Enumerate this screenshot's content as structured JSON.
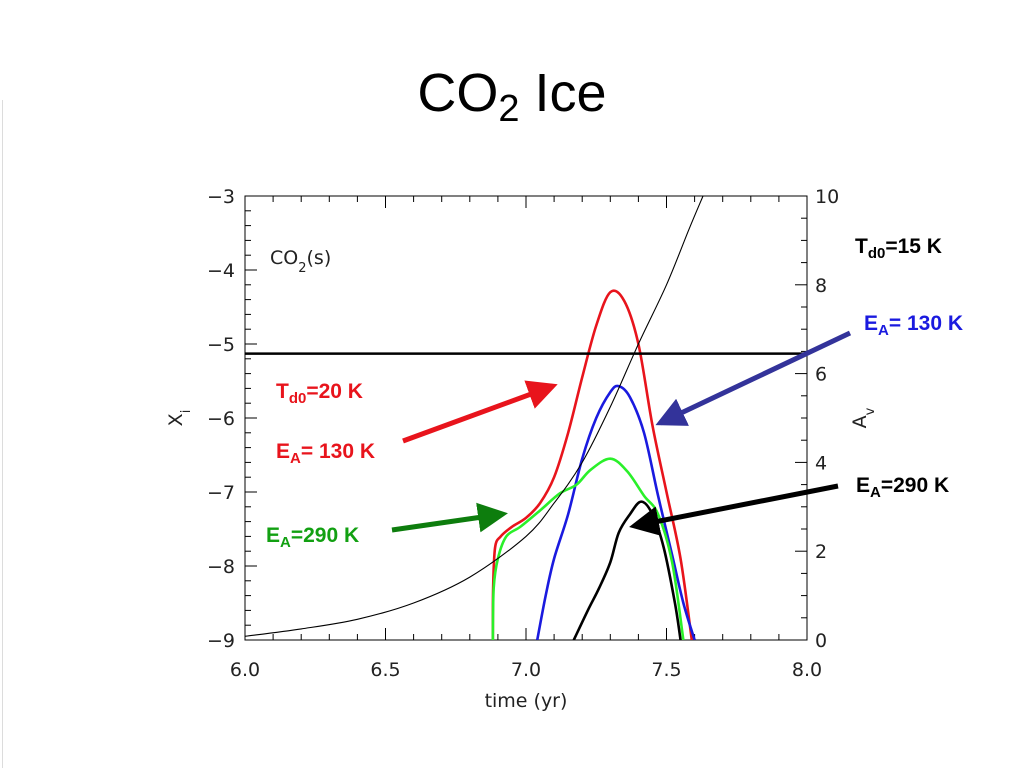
{
  "slide": {
    "title_main": "CO",
    "title_sub": "2",
    "title_rest": " Ice"
  },
  "annotations": {
    "td0_15": {
      "main": "T",
      "sub": "d0",
      "rest": "=15 K"
    },
    "ea_130_blue": {
      "main": "E",
      "sub": "A",
      "rest": "= 130 K"
    },
    "ea_290_black": {
      "main": "E",
      "sub": "A",
      "rest": "=290 K"
    },
    "td0_20": {
      "main": "T",
      "sub": "d0",
      "rest": "=20 K"
    },
    "ea_130_red": {
      "main": "E",
      "sub": "A",
      "rest": "= 130 K"
    },
    "ea_290_green": {
      "main": "E",
      "sub": "A",
      "rest": "=290 K"
    }
  },
  "colors": {
    "red": "#e8141c",
    "blue": "#1a1adf",
    "green": "#2af02a",
    "black": "#000000",
    "arrow_blue": "#33339a",
    "arrow_green": "#0d7d0d"
  },
  "chart_data": {
    "type": "line",
    "panel_label": {
      "main": "CO",
      "sub": "2",
      "rest": "(s)"
    },
    "xlabel": "time (yr)",
    "ylabel_left": {
      "main": "X",
      "sub": "i"
    },
    "ylabel_right": {
      "main": "A",
      "sub": "v"
    },
    "xlim": [
      6.0,
      8.0
    ],
    "ylim_left": [
      -9,
      -3
    ],
    "ylim_right": [
      0,
      10
    ],
    "x_ticks": [
      "6.0",
      "6.5",
      "7.0",
      "7.5",
      "8.0"
    ],
    "y_ticks_left": [
      "−3",
      "−4",
      "−5",
      "−6",
      "−7",
      "−8",
      "−9"
    ],
    "y_ticks_right": [
      "10",
      "8",
      "6",
      "4",
      "2",
      "0"
    ],
    "grid": false,
    "series": [
      {
        "color": "red",
        "axis": "left",
        "points": [
          [
            6.882,
            -9.0
          ],
          [
            6.883,
            -8.3
          ],
          [
            6.89,
            -7.75
          ],
          [
            6.91,
            -7.6
          ],
          [
            6.95,
            -7.47
          ],
          [
            7.0,
            -7.35
          ],
          [
            7.05,
            -7.15
          ],
          [
            7.1,
            -6.8
          ],
          [
            7.15,
            -6.2
          ],
          [
            7.2,
            -5.45
          ],
          [
            7.25,
            -4.75
          ],
          [
            7.3,
            -4.3
          ],
          [
            7.35,
            -4.42
          ],
          [
            7.4,
            -5.0
          ],
          [
            7.45,
            -6.1
          ],
          [
            7.5,
            -7.0
          ],
          [
            7.55,
            -7.9
          ],
          [
            7.59,
            -9.0
          ]
        ]
      },
      {
        "color": "blue",
        "axis": "left",
        "points": [
          [
            7.04,
            -9.0
          ],
          [
            7.07,
            -8.4
          ],
          [
            7.1,
            -7.9
          ],
          [
            7.15,
            -7.3
          ],
          [
            7.2,
            -6.55
          ],
          [
            7.25,
            -6.0
          ],
          [
            7.3,
            -5.65
          ],
          [
            7.33,
            -5.57
          ],
          [
            7.37,
            -5.72
          ],
          [
            7.42,
            -6.2
          ],
          [
            7.47,
            -7.05
          ],
          [
            7.52,
            -7.85
          ],
          [
            7.56,
            -8.5
          ],
          [
            7.6,
            -9.0
          ]
        ]
      },
      {
        "color": "green",
        "axis": "left",
        "points": [
          [
            6.882,
            -9.0
          ],
          [
            6.885,
            -8.3
          ],
          [
            6.9,
            -7.9
          ],
          [
            6.93,
            -7.6
          ],
          [
            6.98,
            -7.47
          ],
          [
            7.05,
            -7.25
          ],
          [
            7.12,
            -7.02
          ],
          [
            7.18,
            -6.9
          ],
          [
            7.23,
            -6.7
          ],
          [
            7.3,
            -6.55
          ],
          [
            7.36,
            -6.72
          ],
          [
            7.42,
            -7.05
          ],
          [
            7.47,
            -7.3
          ],
          [
            7.52,
            -7.95
          ],
          [
            7.56,
            -9.0
          ]
        ]
      },
      {
        "color": "black",
        "axis": "left",
        "points": [
          [
            7.17,
            -9.0
          ],
          [
            7.22,
            -8.6
          ],
          [
            7.26,
            -8.3
          ],
          [
            7.3,
            -7.95
          ],
          [
            7.33,
            -7.55
          ],
          [
            7.37,
            -7.3
          ],
          [
            7.41,
            -7.13
          ],
          [
            7.45,
            -7.3
          ],
          [
            7.49,
            -7.75
          ],
          [
            7.53,
            -8.5
          ],
          [
            7.55,
            -9.0
          ]
        ]
      },
      {
        "color": "black",
        "axis": "left",
        "thin": true,
        "note": "thin rising curve",
        "points": [
          [
            6.0,
            -8.95
          ],
          [
            6.2,
            -8.85
          ],
          [
            6.4,
            -8.72
          ],
          [
            6.6,
            -8.5
          ],
          [
            6.8,
            -8.15
          ],
          [
            7.0,
            -7.6
          ],
          [
            7.1,
            -7.15
          ],
          [
            7.2,
            -6.6
          ],
          [
            7.3,
            -5.85
          ],
          [
            7.4,
            -5.0
          ],
          [
            7.5,
            -4.2
          ],
          [
            7.58,
            -3.45
          ],
          [
            7.63,
            -3.0
          ]
        ]
      },
      {
        "color": "black",
        "axis": "left",
        "note": "horizontal line",
        "points": [
          [
            6.0,
            -5.13
          ],
          [
            8.0,
            -5.13
          ]
        ]
      }
    ]
  }
}
